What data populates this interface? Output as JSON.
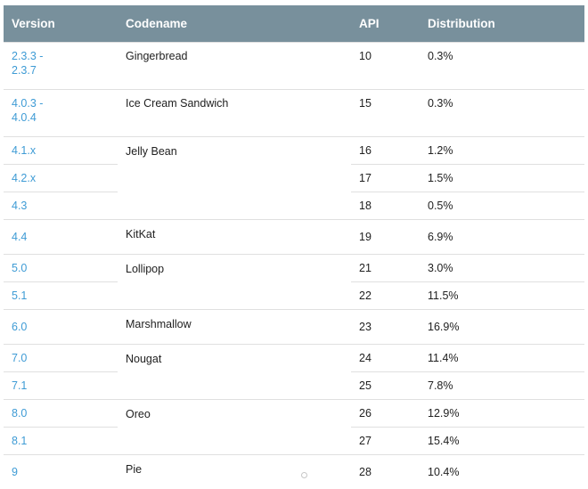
{
  "table": {
    "headers": [
      "Version",
      "Codename",
      "API",
      "Distribution"
    ],
    "rows": [
      {
        "version": "2.3.3 -\n2.3.7",
        "codename": "Gingerbread",
        "api": "10",
        "distribution": "0.3%"
      },
      {
        "version": "4.0.3 -\n4.0.4",
        "codename": "Ice Cream Sandwich",
        "api": "15",
        "distribution": "0.3%"
      },
      {
        "version": "4.1.x",
        "codename": "Jelly Bean",
        "api": "16",
        "distribution": "1.2%"
      },
      {
        "version": "4.2.x",
        "codename": "",
        "api": "17",
        "distribution": "1.5%"
      },
      {
        "version": "4.3",
        "codename": "",
        "api": "18",
        "distribution": "0.5%"
      },
      {
        "version": "4.4",
        "codename": "KitKat",
        "api": "19",
        "distribution": "6.9%"
      },
      {
        "version": "5.0",
        "codename": "Lollipop",
        "api": "21",
        "distribution": "3.0%"
      },
      {
        "version": "5.1",
        "codename": "",
        "api": "22",
        "distribution": "11.5%"
      },
      {
        "version": "6.0",
        "codename": "Marshmallow",
        "api": "23",
        "distribution": "16.9%"
      },
      {
        "version": "7.0",
        "codename": "Nougat",
        "api": "24",
        "distribution": "11.4%"
      },
      {
        "version": "7.1",
        "codename": "",
        "api": "25",
        "distribution": "7.8%"
      },
      {
        "version": "8.0",
        "codename": "Oreo",
        "api": "26",
        "distribution": "12.9%"
      },
      {
        "version": "8.1",
        "codename": "",
        "api": "27",
        "distribution": "15.4%"
      },
      {
        "version": "9",
        "codename": "Pie",
        "api": "28",
        "distribution": "10.4%"
      }
    ]
  },
  "colors": {
    "header_bg": "#78909c",
    "header_text": "#ffffff",
    "version_link": "#3e9bd5",
    "body_text": "#212121",
    "divider": "#e0e0e0"
  }
}
